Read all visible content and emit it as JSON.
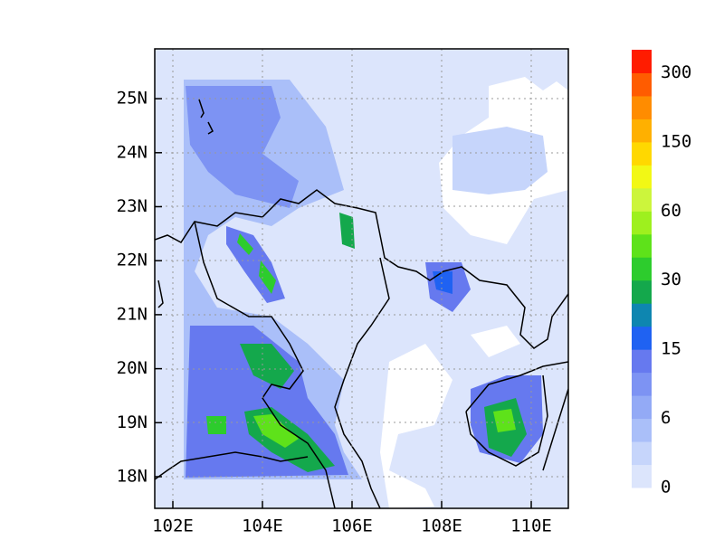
{
  "map": {
    "xticks": [
      "102E",
      "104E",
      "106E",
      "108E",
      "110E"
    ],
    "yticks": [
      "18N",
      "19N",
      "20N",
      "21N",
      "22N",
      "23N",
      "24N",
      "25N"
    ],
    "colorbar": {
      "colors": [
        "#dce5fc",
        "#c6d5fb",
        "#aabff9",
        "#93aaf6",
        "#7d93f3",
        "#6679ef",
        "#1f62f2",
        "#0e86b0",
        "#14a84c",
        "#2dcc2d",
        "#5ee21a",
        "#9ef01e",
        "#ccf53c",
        "#f2f815",
        "#ffd800",
        "#ffb000",
        "#ff8c00",
        "#ff5c00",
        "#ff1c00"
      ],
      "labels": [
        "0",
        "6",
        "15",
        "30",
        "60",
        "150",
        "300"
      ]
    }
  }
}
